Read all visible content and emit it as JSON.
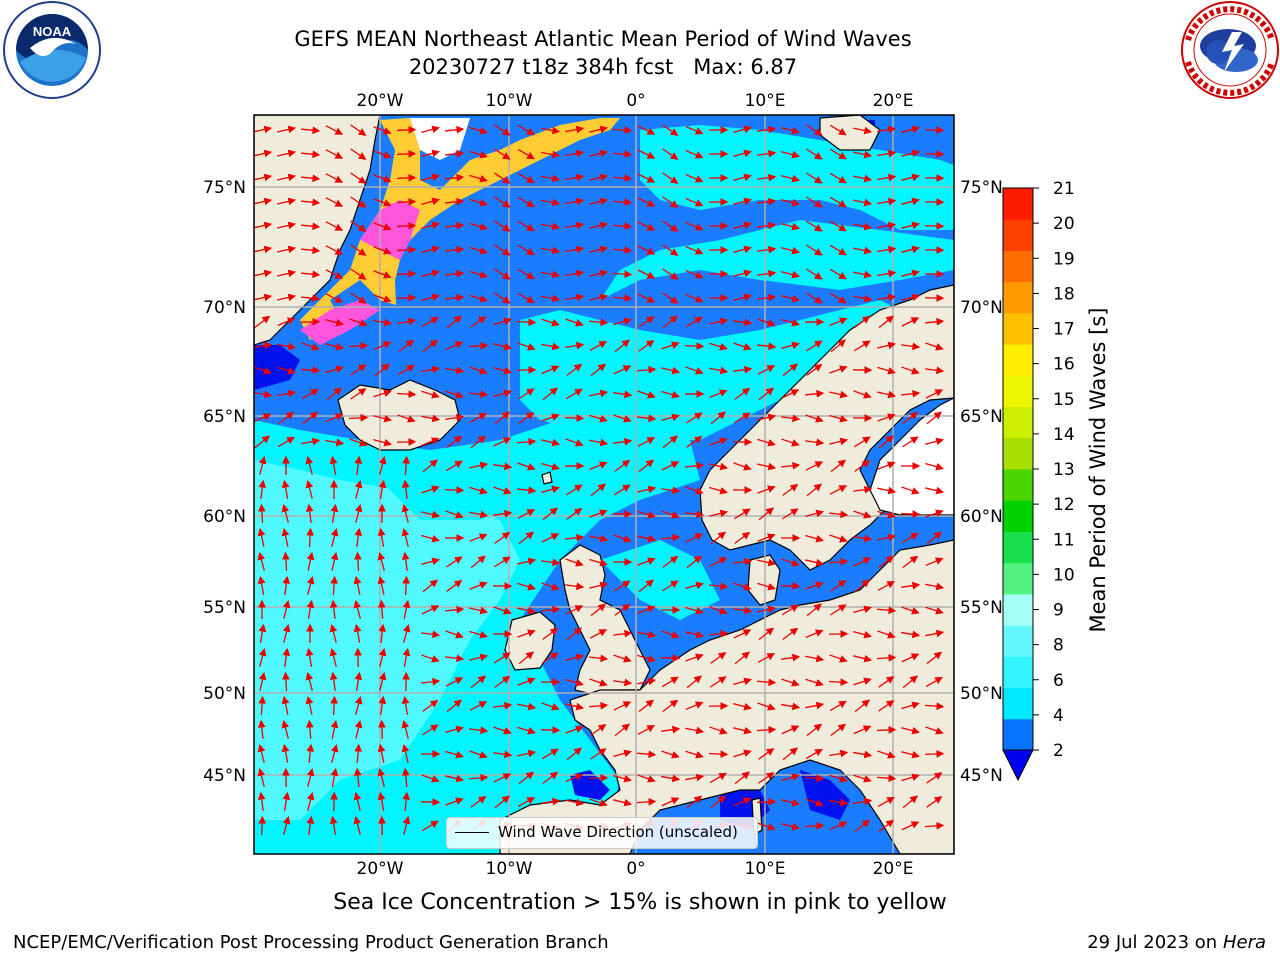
{
  "header": {
    "title_line1": "GEFS MEAN Northeast Atlantic Mean Period of Wind Waves",
    "title_line2": "20230727 t18z 384h fcst   Max: 6.87"
  },
  "logos": {
    "left": {
      "name": "noaa-logo",
      "text": "NOAA",
      "ring_text": "NATIONAL OCEANIC AND ATMOSPHERIC ADMINISTRATION · U.S. DEPARTMENT OF COMMERCE"
    },
    "right": {
      "name": "nws-logo",
      "ring_text": "NATIONAL WEATHER SERVICE"
    }
  },
  "map": {
    "lon_labels": [
      "20°W",
      "10°W",
      "0°",
      "10°E",
      "20°E"
    ],
    "lat_labels": [
      "75°N",
      "70°N",
      "65°N",
      "60°N",
      "55°N",
      "50°N",
      "45°N"
    ],
    "colors": {
      "land": "#efecdc",
      "sea_blue": "#1a7cff",
      "sea_cyan": "#00f5ff",
      "sea_light": "#50faff",
      "sea_deep": "#0012ee",
      "arrow": "#ee0000",
      "grid": "#b0b0b0",
      "ice_pink": "#ff55dd",
      "ice_yellow": "#ffcc33"
    },
    "legend_label": "Wind Wave Direction (unscaled)"
  },
  "colorbar": {
    "label": "Mean Period of Wind Waves [s]",
    "ticks": [
      "2",
      "4",
      "6",
      "8",
      "9",
      "10",
      "11",
      "12",
      "13",
      "14",
      "15",
      "16",
      "17",
      "18",
      "19",
      "20",
      "21"
    ],
    "colors": [
      "#0a74ff",
      "#00eaff",
      "#33f3ff",
      "#66f8ff",
      "#a6fff4",
      "#52f280",
      "#18e04a",
      "#00d100",
      "#4bd600",
      "#a6e000",
      "#ccee00",
      "#eef600",
      "#ffee00",
      "#ffc000",
      "#ff9b00",
      "#ff6e00",
      "#ff4000",
      "#ff1c00"
    ],
    "under_color": "#0000f0"
  },
  "notes": {
    "ice": "Sea Ice Concentration > 15% is shown in pink to yellow"
  },
  "footer": {
    "left": "NCEP/EMC/Verification Post Processing Product Generation Branch",
    "right_date": "29 Jul 2023 on ",
    "right_host": "Hera"
  }
}
